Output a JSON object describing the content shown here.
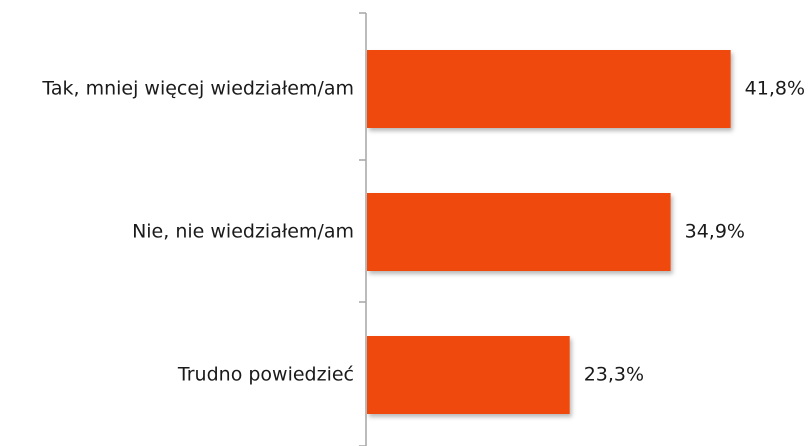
{
  "chart_data": {
    "type": "bar",
    "orientation": "horizontal",
    "categories": [
      "Tak, mniej więcej wiedziałem/am",
      "Nie, nie wiedziałem/am",
      "Trudno powiedzieć"
    ],
    "values": [
      41.8,
      34.9,
      23.3
    ],
    "value_labels": [
      "41,8%",
      "34,9%",
      "23,3%"
    ],
    "xlim": [
      0,
      45
    ],
    "grid": false,
    "legend": "none",
    "title": "",
    "xlabel": "",
    "ylabel": "",
    "bar_color": "#f04a0c",
    "axis_color": "#a6a6a6",
    "text_color": "#1a1a1a"
  }
}
